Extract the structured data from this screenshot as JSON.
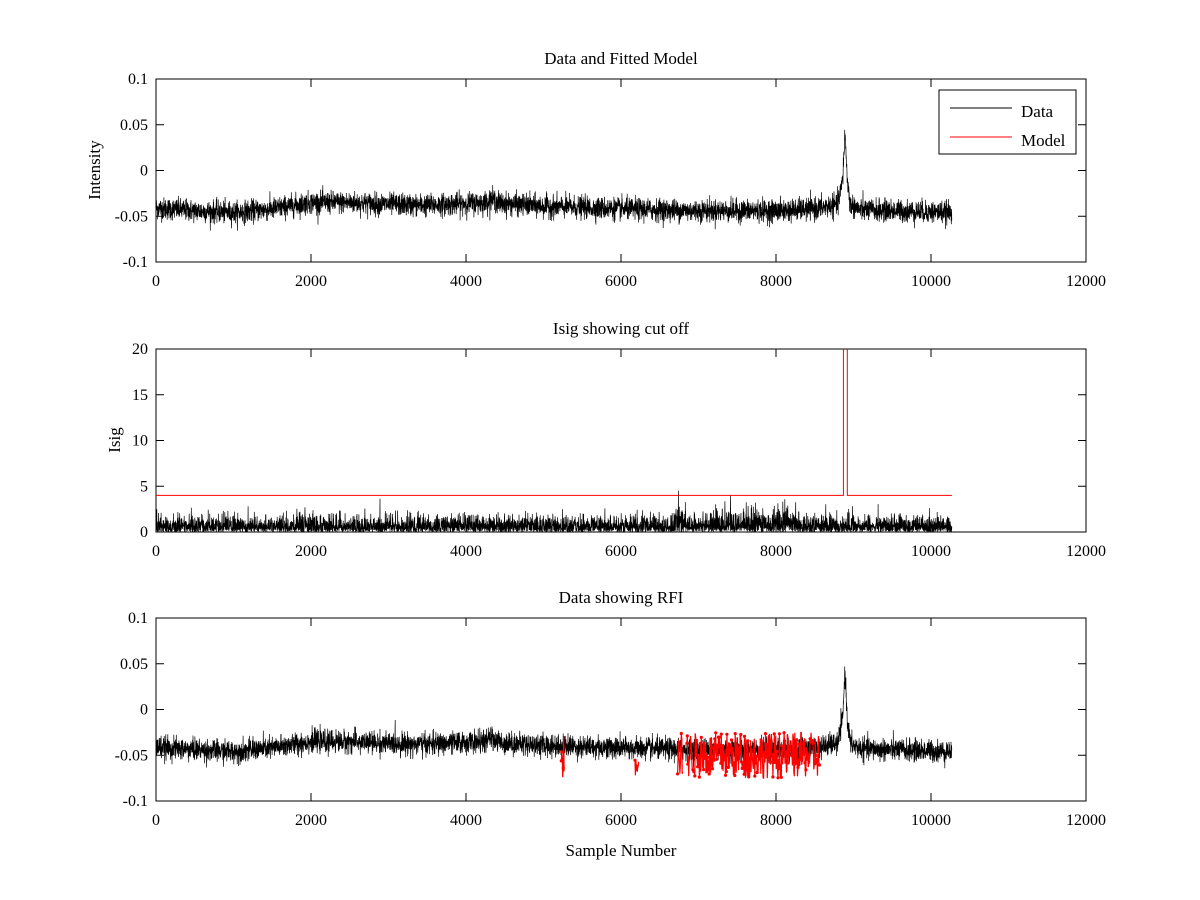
{
  "figure": {
    "background": "#ffffff"
  },
  "chart_data": [
    {
      "type": "line",
      "title": "Data and Fitted Model",
      "xlabel": "",
      "ylabel": "Intensity",
      "xlim": [
        0,
        12000
      ],
      "ylim": [
        -0.1,
        0.1
      ],
      "xticks": [
        0,
        2000,
        4000,
        6000,
        8000,
        10000,
        12000
      ],
      "yticks": [
        -0.1,
        -0.05,
        0,
        0.05,
        0.1
      ],
      "ytick_labels": [
        "-0.1",
        "-0.05",
        "0",
        "0.05",
        "0.1"
      ],
      "grid": false,
      "legend": {
        "position": "top-right",
        "entries": [
          "Data",
          "Model"
        ]
      },
      "series": [
        {
          "name": "Data",
          "color": "#000000",
          "style": "noisy-line",
          "n_samples": 10270,
          "noise_sd": 0.006,
          "baseline_points": [
            [
              0,
              -0.041
            ],
            [
              500,
              -0.044
            ],
            [
              1000,
              -0.046
            ],
            [
              1500,
              -0.042
            ],
            [
              2000,
              -0.035
            ],
            [
              2500,
              -0.035
            ],
            [
              3000,
              -0.037
            ],
            [
              3500,
              -0.038
            ],
            [
              4000,
              -0.036
            ],
            [
              4250,
              -0.035
            ],
            [
              4330,
              -0.031
            ],
            [
              4450,
              -0.036
            ],
            [
              5000,
              -0.039
            ],
            [
              6000,
              -0.042
            ],
            [
              6500,
              -0.043
            ],
            [
              7000,
              -0.044
            ],
            [
              8000,
              -0.044
            ],
            [
              8500,
              -0.042
            ],
            [
              8800,
              -0.037
            ],
            [
              8860,
              -0.01
            ],
            [
              8890,
              0.042
            ],
            [
              8920,
              -0.01
            ],
            [
              8960,
              -0.038
            ],
            [
              9100,
              -0.043
            ],
            [
              10270,
              -0.046
            ]
          ]
        },
        {
          "name": "Model",
          "color": "#ff0000",
          "points": [
            [
              0,
              -0.041
            ],
            [
              500,
              -0.044
            ],
            [
              1000,
              -0.046
            ],
            [
              1500,
              -0.042
            ],
            [
              2000,
              -0.035
            ],
            [
              2500,
              -0.035
            ],
            [
              3000,
              -0.037
            ],
            [
              3500,
              -0.038
            ],
            [
              4000,
              -0.036
            ],
            [
              4250,
              -0.035
            ],
            [
              4330,
              -0.031
            ],
            [
              4450,
              -0.036
            ],
            [
              5000,
              -0.039
            ],
            [
              6000,
              -0.042
            ],
            [
              6500,
              -0.043
            ],
            [
              7000,
              -0.044
            ],
            [
              8000,
              -0.044
            ],
            [
              8500,
              -0.042
            ],
            [
              8800,
              -0.037
            ],
            [
              8860,
              -0.01
            ],
            [
              8890,
              0.03
            ],
            [
              8920,
              -0.01
            ],
            [
              8960,
              -0.038
            ],
            [
              9100,
              -0.043
            ],
            [
              10270,
              -0.046
            ]
          ]
        }
      ]
    },
    {
      "type": "line",
      "title": "Isig showing cut off",
      "xlabel": "",
      "ylabel": "Isig",
      "xlim": [
        0,
        12000
      ],
      "ylim": [
        0,
        20
      ],
      "xticks": [
        0,
        2000,
        4000,
        6000,
        8000,
        10000,
        12000
      ],
      "yticks": [
        0,
        5,
        10,
        15,
        20
      ],
      "ytick_labels": [
        "0",
        "5",
        "10",
        "15",
        "20"
      ],
      "grid": false,
      "series": [
        {
          "color": "#000000",
          "style": "abs-noise",
          "n_samples": 10270,
          "scale": 0.85,
          "bursts": [
            [
              6700,
              6850,
              1.6
            ],
            [
              7000,
              8300,
              1.4
            ]
          ]
        },
        {
          "color": "#ff0000",
          "style": "cutoff",
          "level": 4,
          "x_end": 10270,
          "spike_x": [
            8870,
            8920
          ]
        }
      ]
    },
    {
      "type": "line",
      "title": "Data showing RFI",
      "xlabel": "Sample Number",
      "ylabel": "",
      "xlim": [
        0,
        12000
      ],
      "ylim": [
        -0.1,
        0.1
      ],
      "xticks": [
        0,
        2000,
        4000,
        6000,
        8000,
        10000,
        12000
      ],
      "yticks": [
        -0.1,
        -0.05,
        0,
        0.05,
        0.1
      ],
      "ytick_labels": [
        "-0.1",
        "-0.05",
        "0",
        "0.05",
        "0.1"
      ],
      "grid": false,
      "series": [
        {
          "color": "#000000",
          "style": "noisy-line",
          "n_samples": 10270,
          "noise_sd": 0.006,
          "baseline_ref": 0
        },
        {
          "color": "#ff0000",
          "style": "flagged-markers",
          "segments": [
            [
              5230,
              5270
            ],
            [
              6180,
              6230
            ],
            [
              6730,
              6800
            ],
            [
              6850,
              8560
            ]
          ],
          "y_range": [
            -0.075,
            -0.025
          ]
        }
      ]
    }
  ]
}
